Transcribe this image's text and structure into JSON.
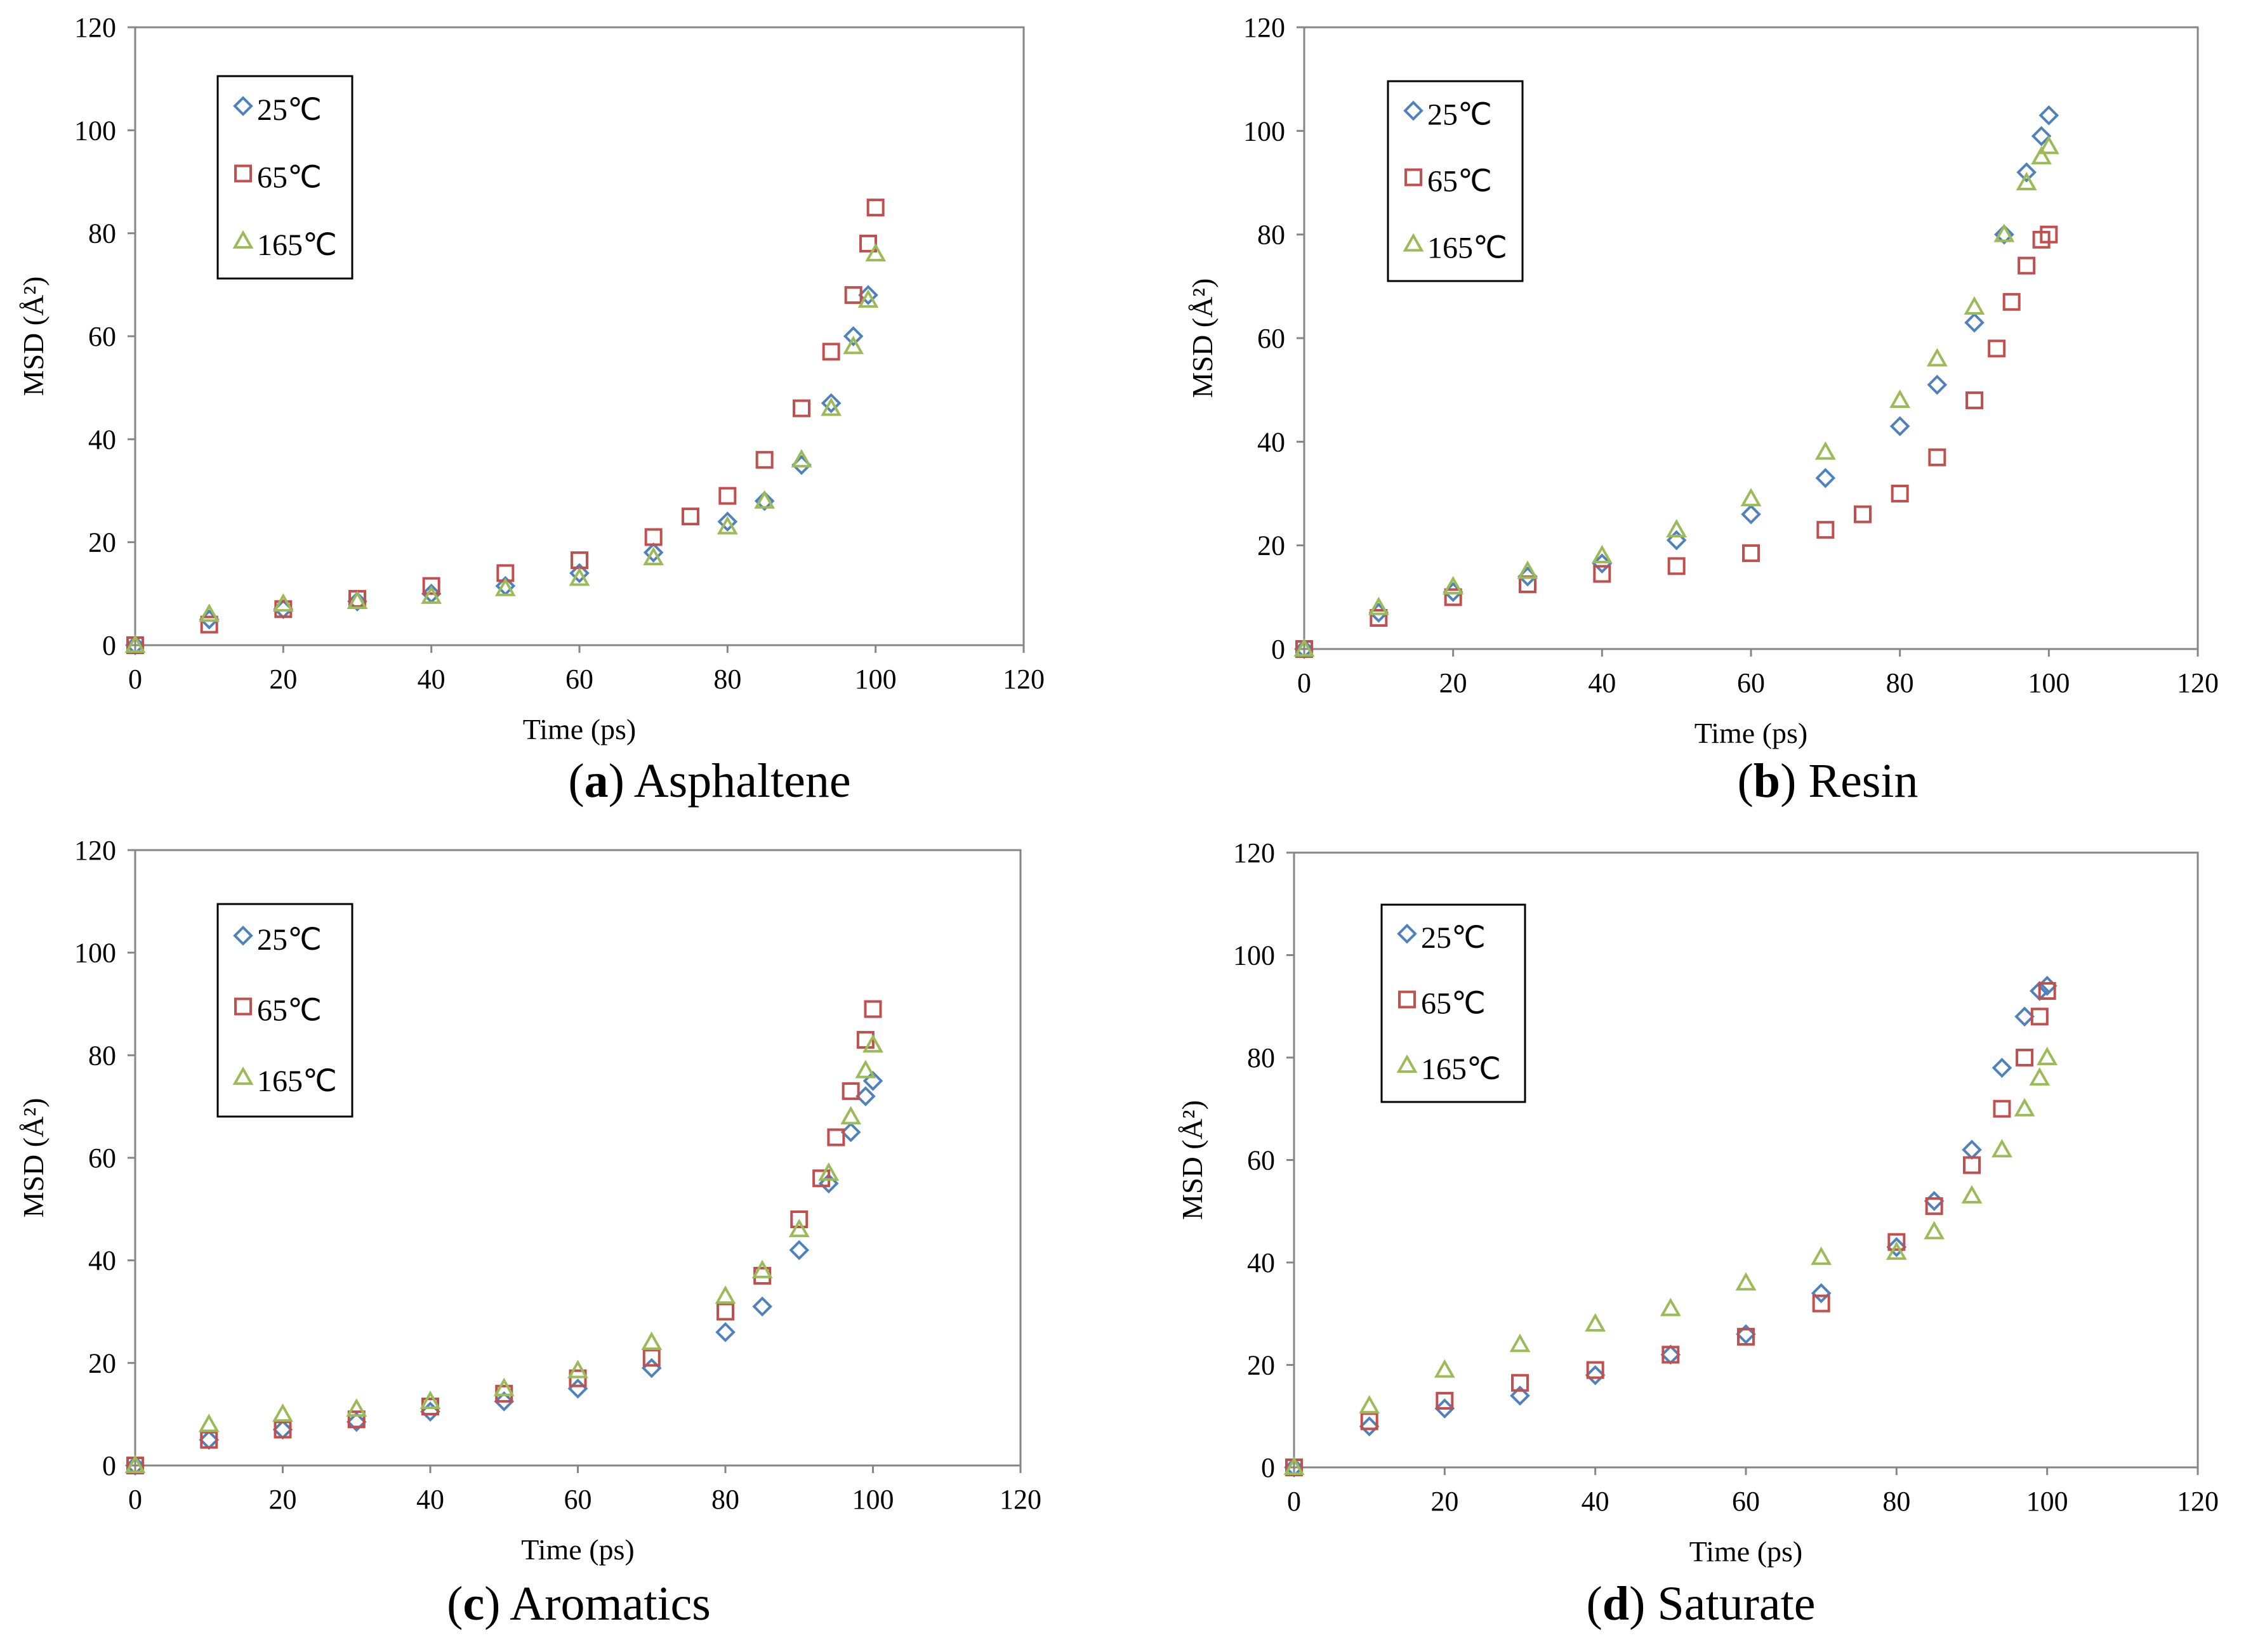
{
  "colors": {
    "s25": "#4f81bd",
    "s65": "#c0504d",
    "s165": "#9bbb59"
  },
  "chart_data": [
    {
      "type": "scatter",
      "panel_letter": "a",
      "panel_name": "Asphaltene",
      "xlabel": "Time (ps)",
      "ylabel": "MSD (Å²)",
      "xlim": [
        0,
        120
      ],
      "ylim": [
        0,
        120
      ],
      "xticks": [
        0,
        20,
        40,
        60,
        80,
        100,
        120
      ],
      "yticks": [
        0,
        20,
        40,
        60,
        80,
        100,
        120
      ],
      "grid": false,
      "legend_position": "top-left",
      "series": [
        {
          "name": "25℃",
          "marker": "diamond",
          "x": [
            0,
            10,
            20,
            30,
            40,
            50,
            60,
            70,
            80,
            85,
            90,
            94,
            97,
            99
          ],
          "y": [
            0,
            5,
            7,
            8.5,
            10,
            11.5,
            14,
            18,
            24,
            28,
            35,
            47,
            60,
            68
          ]
        },
        {
          "name": "65℃",
          "marker": "square",
          "x": [
            0,
            10,
            20,
            30,
            40,
            50,
            60,
            70,
            75,
            80,
            85,
            90,
            94,
            97,
            99,
            100
          ],
          "y": [
            0,
            4,
            7,
            9,
            11.5,
            14,
            16.5,
            21,
            25,
            29,
            36,
            46,
            57,
            68,
            78,
            85
          ]
        },
        {
          "name": "165℃",
          "marker": "triangle",
          "x": [
            0,
            10,
            20,
            30,
            40,
            50,
            60,
            70,
            80,
            85,
            90,
            94,
            97,
            99,
            100
          ],
          "y": [
            0,
            6,
            8,
            8.5,
            9.5,
            11,
            13,
            17,
            23,
            28,
            36,
            46,
            58,
            67,
            76
          ]
        }
      ]
    },
    {
      "type": "scatter",
      "panel_letter": "b",
      "panel_name": "Resin",
      "xlabel": "Time (ps)",
      "ylabel": "MSD (Å²)",
      "xlim": [
        0,
        120
      ],
      "ylim": [
        0,
        120
      ],
      "xticks": [
        0,
        20,
        40,
        60,
        80,
        100,
        120
      ],
      "yticks": [
        0,
        20,
        40,
        60,
        80,
        100,
        120
      ],
      "grid": false,
      "legend_position": "top-left",
      "series": [
        {
          "name": "25℃",
          "marker": "diamond",
          "x": [
            0,
            10,
            20,
            30,
            40,
            50,
            60,
            70,
            80,
            85,
            90,
            94,
            97,
            99,
            100
          ],
          "y": [
            0,
            7,
            11,
            14,
            16.5,
            21,
            26,
            33,
            43,
            51,
            63,
            80,
            92,
            99,
            103
          ]
        },
        {
          "name": "65℃",
          "marker": "square",
          "x": [
            0,
            10,
            20,
            30,
            40,
            50,
            60,
            70,
            75,
            80,
            85,
            90,
            93,
            95,
            97,
            99,
            100
          ],
          "y": [
            0,
            6,
            10,
            12.5,
            14.5,
            16,
            18.5,
            23,
            26,
            30,
            37,
            48,
            58,
            67,
            74,
            79,
            80
          ]
        },
        {
          "name": "165℃",
          "marker": "triangle",
          "x": [
            0,
            10,
            20,
            30,
            40,
            50,
            60,
            70,
            80,
            85,
            90,
            94,
            97,
            99,
            100
          ],
          "y": [
            0,
            8,
            12,
            15,
            18,
            23,
            29,
            38,
            48,
            56,
            66,
            80,
            90,
            95,
            97
          ]
        }
      ]
    },
    {
      "type": "scatter",
      "panel_letter": "c",
      "panel_name": "Aromatics",
      "xlabel": "Time (ps)",
      "ylabel": "MSD (Å²)",
      "xlim": [
        0,
        120
      ],
      "ylim": [
        0,
        120
      ],
      "xticks": [
        0,
        20,
        40,
        60,
        80,
        100,
        120
      ],
      "yticks": [
        0,
        20,
        40,
        60,
        80,
        100,
        120
      ],
      "grid": false,
      "legend_position": "top-left",
      "series": [
        {
          "name": "25℃",
          "marker": "diamond",
          "x": [
            0,
            10,
            20,
            30,
            40,
            50,
            60,
            70,
            80,
            85,
            90,
            94,
            97,
            99,
            100
          ],
          "y": [
            0,
            5,
            7,
            8.5,
            10.5,
            12.5,
            15,
            19,
            26,
            31,
            42,
            55,
            65,
            72,
            75
          ]
        },
        {
          "name": "65℃",
          "marker": "square",
          "x": [
            0,
            10,
            20,
            30,
            40,
            50,
            60,
            70,
            80,
            85,
            90,
            93,
            95,
            97,
            99,
            100
          ],
          "y": [
            0,
            5,
            7,
            9,
            11.5,
            14,
            17,
            21,
            30,
            37,
            48,
            56,
            64,
            73,
            83,
            89
          ]
        },
        {
          "name": "165℃",
          "marker": "triangle",
          "x": [
            0,
            10,
            20,
            30,
            40,
            50,
            60,
            70,
            80,
            85,
            90,
            94,
            97,
            99,
            100
          ],
          "y": [
            0,
            8,
            10,
            11,
            12.5,
            15,
            18.5,
            24,
            33,
            38,
            46,
            57,
            68,
            77,
            82
          ]
        }
      ]
    },
    {
      "type": "scatter",
      "panel_letter": "d",
      "panel_name": "Saturate",
      "xlabel": "Time (ps)",
      "ylabel": "MSD (Å²)",
      "xlim": [
        0,
        120
      ],
      "ylim": [
        0,
        120
      ],
      "xticks": [
        0,
        20,
        40,
        60,
        80,
        100,
        120
      ],
      "yticks": [
        0,
        20,
        40,
        60,
        80,
        100,
        120
      ],
      "grid": false,
      "legend_position": "top-left",
      "series": [
        {
          "name": "25℃",
          "marker": "diamond",
          "x": [
            0,
            10,
            20,
            30,
            40,
            50,
            60,
            70,
            80,
            85,
            90,
            94,
            97,
            99,
            100
          ],
          "y": [
            0,
            8,
            11.5,
            14,
            18,
            22,
            26,
            34,
            43,
            52,
            62,
            78,
            88,
            93,
            94
          ]
        },
        {
          "name": "65℃",
          "marker": "square",
          "x": [
            0,
            10,
            20,
            30,
            40,
            50,
            60,
            70,
            80,
            85,
            90,
            94,
            97,
            99,
            100
          ],
          "y": [
            0,
            9,
            13,
            16.5,
            19,
            22,
            25.5,
            32,
            44,
            51,
            59,
            70,
            80,
            88,
            93
          ]
        },
        {
          "name": "165℃",
          "marker": "triangle",
          "x": [
            0,
            10,
            20,
            30,
            40,
            50,
            60,
            70,
            80,
            85,
            90,
            94,
            97,
            99,
            100
          ],
          "y": [
            0,
            12,
            19,
            24,
            28,
            31,
            36,
            41,
            42,
            46,
            53,
            62,
            70,
            76,
            80
          ]
        }
      ]
    }
  ]
}
